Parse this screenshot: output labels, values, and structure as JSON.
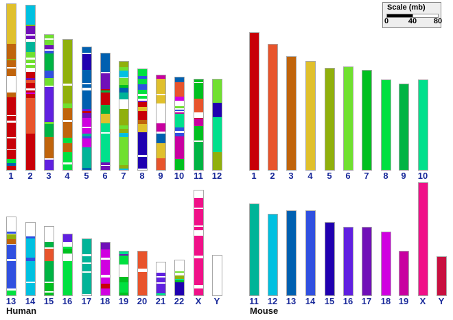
{
  "scale": {
    "title": "Scale (mb)",
    "ticks": [
      "0",
      "40",
      "80"
    ],
    "max_mb": 80
  },
  "species": {
    "human": "Human",
    "mouse": "Mouse"
  },
  "mouse_colors": {
    "1": "#c80008",
    "2": "#e8542c",
    "3": "#c0640c",
    "4": "#e0c02c",
    "5": "#90b00c",
    "6": "#70e030",
    "7": "#00c020",
    "8": "#00e040",
    "9": "#00b444",
    "10": "#00e08c",
    "11": "#00b498",
    "12": "#00c0e0",
    "13": "#0060b0",
    "14": "#3050e0",
    "15": "#2000b0",
    "16": "#6020e0",
    "17": "#7010b8",
    "18": "#d000e0",
    "19": "#c800a0",
    "X": "#f01088",
    "Y": "#c81040",
    "": "#ffffff"
  },
  "human": [
    {
      "name": "1",
      "length_mb": 247,
      "segments": [
        [
          "4",
          67
        ],
        [
          "3",
          25
        ],
        [
          "5",
          3
        ],
        [
          "3",
          12
        ],
        [
          "",
          2
        ],
        [
          "3",
          12
        ],
        [
          "",
          28
        ],
        [
          "3",
          8
        ],
        [
          "1",
          30
        ],
        [
          "",
          2
        ],
        [
          "1",
          8
        ],
        [
          "",
          3
        ],
        [
          "1",
          25
        ],
        [
          "",
          2
        ],
        [
          "1",
          18
        ],
        [
          "",
          2
        ],
        [
          "1",
          14
        ],
        [
          "8",
          7
        ],
        [
          "13",
          5
        ],
        [
          "1",
          7
        ]
      ]
    },
    {
      "name": "2",
      "length_mb": 245,
      "segments": [
        [
          "12",
          27
        ],
        [
          "5",
          2
        ],
        [
          "17",
          12
        ],
        [
          "",
          2
        ],
        [
          "17",
          5
        ],
        [
          "",
          4
        ],
        [
          "11",
          14
        ],
        [
          "6",
          8
        ],
        [
          "",
          3
        ],
        [
          "6",
          5
        ],
        [
          "",
          3
        ],
        [
          "6",
          4
        ],
        [
          "",
          6
        ],
        [
          "1",
          8
        ],
        [
          "17",
          3
        ],
        [
          "2",
          4
        ],
        [
          "1",
          8
        ],
        [
          "",
          3
        ],
        [
          "1",
          3
        ],
        [
          "18",
          2
        ],
        [
          "1",
          6
        ],
        [
          "2",
          50
        ],
        [
          "1",
          10
        ],
        [
          "1",
          30
        ],
        [
          "1",
          12
        ]
      ]
    },
    {
      "name": "3",
      "length_mb": 201,
      "segments": [
        [
          "6",
          5
        ],
        [
          "",
          2
        ],
        [
          "6",
          8
        ],
        [
          "17",
          5
        ],
        [
          "",
          2
        ],
        [
          "14",
          4
        ],
        [
          "9",
          25
        ],
        [
          "14",
          10
        ],
        [
          "6",
          11
        ],
        [
          "",
          2
        ],
        [
          "16",
          50
        ],
        [
          "6",
          3
        ],
        [
          "9",
          18
        ],
        [
          "3",
          20
        ],
        [
          "3",
          10
        ],
        [
          "",
          2
        ],
        [
          "16",
          15
        ]
      ]
    },
    {
      "name": "4",
      "length_mb": 194,
      "segments": [
        [
          "5",
          60
        ],
        [
          "",
          2
        ],
        [
          "5",
          25
        ],
        [
          "6",
          6
        ],
        [
          "3",
          16
        ],
        [
          "",
          3
        ],
        [
          "3",
          6
        ],
        [
          "3",
          15
        ],
        [
          "8",
          8
        ],
        [
          "3",
          12
        ],
        [
          "8",
          14
        ],
        [
          "",
          3
        ],
        [
          "8",
          7
        ]
      ]
    },
    {
      "name": "5",
      "length_mb": 183,
      "segments": [
        [
          "13",
          8
        ],
        [
          "",
          2
        ],
        [
          "15",
          22
        ],
        [
          "13",
          18
        ],
        [
          "",
          2
        ],
        [
          "13",
          5
        ],
        [
          "",
          4
        ],
        [
          "13",
          25
        ],
        [
          "16",
          3
        ],
        [
          "1",
          3
        ],
        [
          "17",
          7
        ],
        [
          "18",
          12
        ],
        [
          "",
          2
        ],
        [
          "18",
          8
        ],
        [
          "11",
          4
        ],
        [
          "14",
          3
        ],
        [
          "18",
          12
        ],
        [
          "11",
          4
        ],
        [
          "11",
          25
        ],
        [
          "13",
          3
        ]
      ]
    },
    {
      "name": "6",
      "length_mb": 173,
      "segments": [
        [
          "13",
          26
        ],
        [
          "",
          2
        ],
        [
          "17",
          22
        ],
        [
          "1",
          2
        ],
        [
          "9",
          3
        ],
        [
          "1",
          17
        ],
        [
          "9",
          12
        ],
        [
          "4",
          14
        ],
        [
          "10",
          12
        ],
        [
          "",
          2
        ],
        [
          "10",
          40
        ],
        [
          "17",
          4
        ],
        [
          "",
          1
        ],
        [
          "17",
          6
        ]
      ]
    },
    {
      "name": "7",
      "length_mb": 161,
      "segments": [
        [
          "5",
          8
        ],
        [
          "6",
          5
        ],
        [
          "12",
          10
        ],
        [
          "",
          1
        ],
        [
          "6",
          9
        ],
        [
          "7",
          4
        ],
        [
          "13",
          7
        ],
        [
          "11",
          10
        ],
        [
          "",
          14
        ],
        [
          "5",
          3
        ],
        [
          "5",
          20
        ],
        [
          "6",
          5
        ],
        [
          "5",
          6
        ],
        [
          "12",
          6
        ],
        [
          "6",
          40
        ],
        [
          "5",
          5
        ],
        [
          "12",
          2
        ]
      ]
    },
    {
      "name": "8",
      "length_mb": 150,
      "segments": [
        [
          "8",
          8
        ],
        [
          "14",
          4
        ],
        [
          "8",
          6
        ],
        [
          "14",
          7
        ],
        [
          "8",
          5
        ],
        [
          "",
          2
        ],
        [
          "8",
          4
        ],
        [
          "",
          2
        ],
        [
          "17",
          2
        ],
        [
          "1",
          6
        ],
        [
          "4",
          5
        ],
        [
          "1",
          10
        ],
        [
          "3",
          5
        ],
        [
          "4",
          10
        ],
        [
          "15",
          28
        ],
        [
          "",
          2
        ],
        [
          "15",
          14
        ],
        [
          "",
          2
        ]
      ]
    },
    {
      "name": "9",
      "length_mb": 141,
      "segments": [
        [
          "19",
          5
        ],
        [
          "4",
          22
        ],
        [
          "",
          2
        ],
        [
          "4",
          12
        ],
        [
          "",
          30
        ],
        [
          "19",
          12
        ],
        [
          "",
          3
        ],
        [
          "13",
          14
        ],
        [
          "4",
          12
        ],
        [
          "4",
          10
        ],
        [
          "2",
          17
        ]
      ]
    },
    {
      "name": "10",
      "length_mb": 138,
      "segments": [
        [
          "13",
          6
        ],
        [
          "2",
          20
        ],
        [
          "18",
          5
        ],
        [
          "",
          8
        ],
        [
          "6",
          2
        ],
        [
          "",
          2
        ],
        [
          "14",
          2
        ],
        [
          "",
          2
        ],
        [
          "19",
          2
        ],
        [
          "10",
          18
        ],
        [
          "14",
          5
        ],
        [
          "",
          2
        ],
        [
          "14",
          5
        ],
        [
          "19",
          30
        ],
        [
          "7",
          15
        ]
      ]
    },
    {
      "name": "11",
      "length_mb": 135,
      "segments": [
        [
          "7",
          4
        ],
        [
          "",
          1
        ],
        [
          "7",
          22
        ],
        [
          "2",
          20
        ],
        [
          "",
          8
        ],
        [
          "1",
          1
        ],
        [
          "19",
          10
        ],
        [
          "7",
          21
        ],
        [
          "",
          2
        ],
        [
          "9",
          12
        ],
        [
          "9",
          28
        ]
      ]
    },
    {
      "name": "12",
      "length_mb": 135,
      "segments": [
        [
          "6",
          10
        ],
        [
          "6",
          23
        ],
        [
          "15",
          20
        ],
        [
          "10",
          50
        ],
        [
          "5",
          25
        ]
      ]
    },
    {
      "name": "13",
      "length_mb": 116,
      "segments": [
        [
          "",
          20
        ],
        [
          "14",
          3
        ],
        [
          "",
          1
        ],
        [
          "5",
          7
        ],
        [
          "3",
          6
        ],
        [
          "",
          1
        ],
        [
          "14",
          20
        ],
        [
          "",
          3
        ],
        [
          "14",
          38
        ],
        [
          "",
          3
        ],
        [
          "8",
          7
        ]
      ]
    },
    {
      "name": "14",
      "length_mb": 108,
      "segments": [
        [
          "",
          20
        ],
        [
          "14",
          3
        ],
        [
          "12",
          28
        ],
        [
          "14",
          6
        ],
        [
          "12",
          30
        ],
        [
          "",
          2
        ],
        [
          "12",
          18
        ]
      ]
    },
    {
      "name": "15",
      "length_mb": 102,
      "segments": [
        [
          "",
          22
        ],
        [
          "9",
          8
        ],
        [
          "",
          2
        ],
        [
          "2",
          18
        ],
        [
          "9",
          30
        ],
        [
          "",
          2
        ],
        [
          "7",
          12
        ],
        [
          "",
          2
        ],
        [
          "7",
          4
        ]
      ]
    },
    {
      "name": "16",
      "length_mb": 91,
      "segments": [
        [
          "16",
          10
        ],
        [
          "",
          6
        ],
        [
          "8",
          3
        ],
        [
          "7",
          6
        ],
        [
          "",
          10
        ],
        [
          "8",
          45
        ]
      ]
    },
    {
      "name": "17",
      "length_mb": 84,
      "segments": [
        [
          "11",
          20
        ],
        [
          "",
          3
        ],
        [
          "11",
          8
        ],
        [
          "",
          2
        ],
        [
          "11",
          10
        ],
        [
          "",
          2
        ],
        [
          "11",
          28
        ],
        [
          "",
          2
        ]
      ]
    },
    {
      "name": "18",
      "length_mb": 79,
      "segments": [
        [
          "17",
          8
        ],
        [
          "18",
          10
        ],
        [
          "",
          3
        ],
        [
          "18",
          18
        ],
        [
          "",
          3
        ],
        [
          "18",
          8
        ],
        [
          "1",
          6
        ],
        [
          "18",
          8
        ]
      ]
    },
    {
      "name": "19",
      "length_mb": 65,
      "segments": [
        [
          "10",
          4
        ],
        [
          "17",
          2
        ],
        [
          "8",
          14
        ],
        [
          "",
          18
        ],
        [
          "7",
          8
        ],
        [
          "8",
          16
        ],
        [
          "7",
          4
        ]
      ]
    },
    {
      "name": "20",
      "length_mb": 65,
      "segments": [
        [
          "2",
          25
        ],
        [
          "",
          5
        ],
        [
          "2",
          34
        ]
      ]
    },
    {
      "name": "21",
      "length_mb": 49,
      "segments": [
        [
          "",
          15
        ],
        [
          "16",
          5
        ],
        [
          "",
          2
        ],
        [
          "16",
          8
        ],
        [
          "",
          2
        ],
        [
          "16",
          14
        ],
        [
          "10",
          3
        ]
      ]
    },
    {
      "name": "22",
      "length_mb": 52,
      "segments": [
        [
          "",
          15
        ],
        [
          "6",
          2
        ],
        [
          "",
          4
        ],
        [
          "5",
          5
        ],
        [
          "10",
          2
        ],
        [
          "7",
          3
        ],
        [
          "15",
          18
        ]
      ]
    },
    {
      "name": "X",
      "length_mb": 156,
      "segments": [
        [
          "",
          11
        ],
        [
          "X",
          15
        ],
        [
          "",
          2
        ],
        [
          "X",
          25
        ],
        [
          "",
          2
        ],
        [
          "X",
          5
        ],
        [
          "",
          8
        ],
        [
          "X",
          30
        ],
        [
          "",
          4
        ],
        [
          "X",
          24
        ],
        [
          "X",
          17
        ],
        [
          "",
          5
        ],
        [
          "X",
          10
        ]
      ]
    },
    {
      "name": "Y",
      "length_mb": 59,
      "segments": [
        [
          "",
          59
        ]
      ]
    }
  ],
  "mouse": [
    {
      "name": "1",
      "length_mb": 204
    },
    {
      "name": "2",
      "length_mb": 187
    },
    {
      "name": "3",
      "length_mb": 168
    },
    {
      "name": "4",
      "length_mb": 161
    },
    {
      "name": "5",
      "length_mb": 151
    },
    {
      "name": "6",
      "length_mb": 153
    },
    {
      "name": "7",
      "length_mb": 148
    },
    {
      "name": "8",
      "length_mb": 134
    },
    {
      "name": "9",
      "length_mb": 128
    },
    {
      "name": "10",
      "length_mb": 134
    },
    {
      "name": "11",
      "length_mb": 136
    },
    {
      "name": "12",
      "length_mb": 120
    },
    {
      "name": "13",
      "length_mb": 126
    },
    {
      "name": "14",
      "length_mb": 126
    },
    {
      "name": "15",
      "length_mb": 108
    },
    {
      "name": "16",
      "length_mb": 101
    },
    {
      "name": "17",
      "length_mb": 101
    },
    {
      "name": "18",
      "length_mb": 94
    },
    {
      "name": "19",
      "length_mb": 65
    },
    {
      "name": "X",
      "length_mb": 167
    },
    {
      "name": "Y",
      "length_mb": 57
    }
  ]
}
